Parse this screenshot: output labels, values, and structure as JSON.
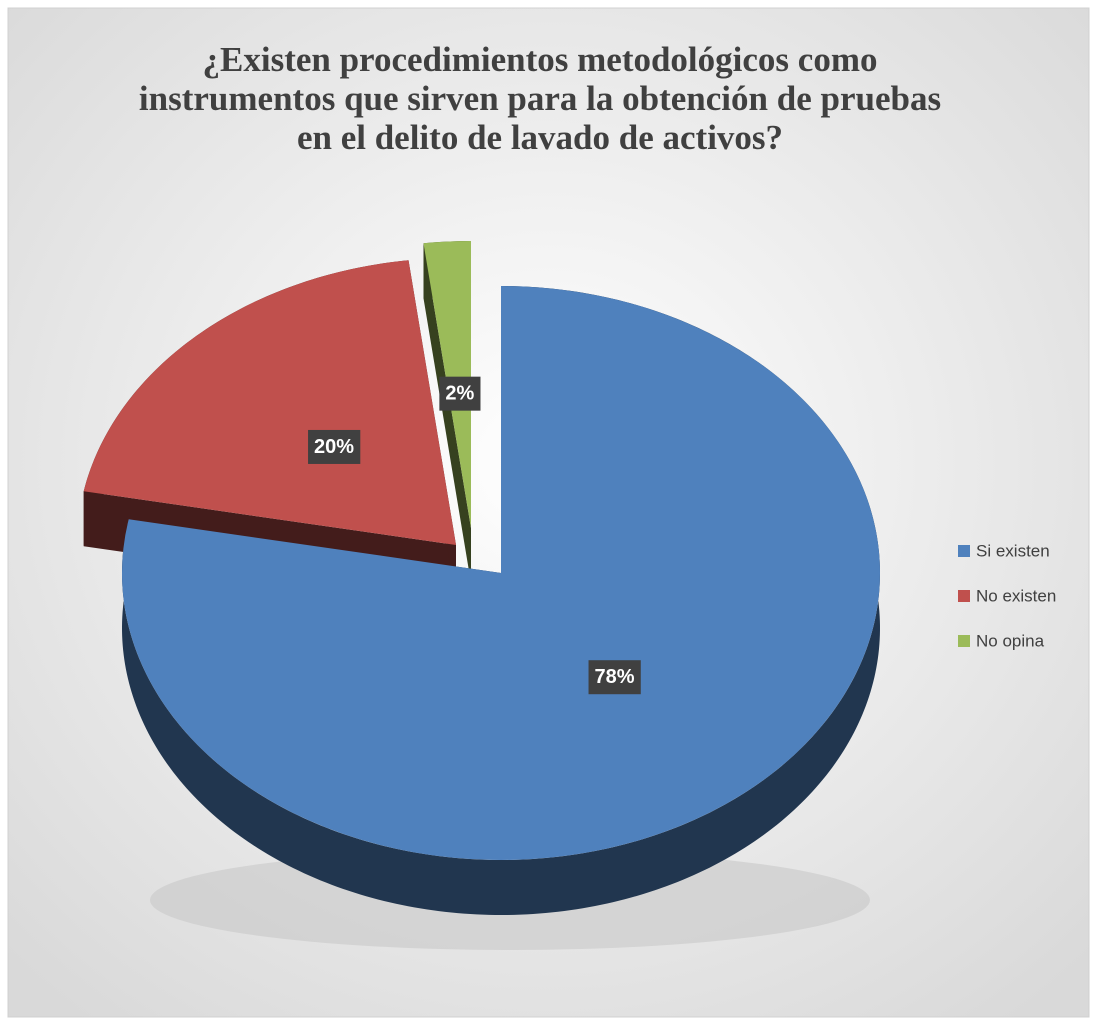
{
  "chart_data": {
    "type": "pie",
    "title": "¿Existen procedimientos metodológicos como instrumentos que sirven para la obtención de pruebas en el delito de lavado de activos?",
    "categories": [
      "Si existen",
      "No existen",
      "No opina"
    ],
    "values": [
      78,
      20,
      2
    ],
    "value_labels": [
      "78%",
      "20%",
      "2%"
    ],
    "colors": [
      "#4f81bd",
      "#c0504d",
      "#9bbb59"
    ],
    "legend": "right"
  }
}
